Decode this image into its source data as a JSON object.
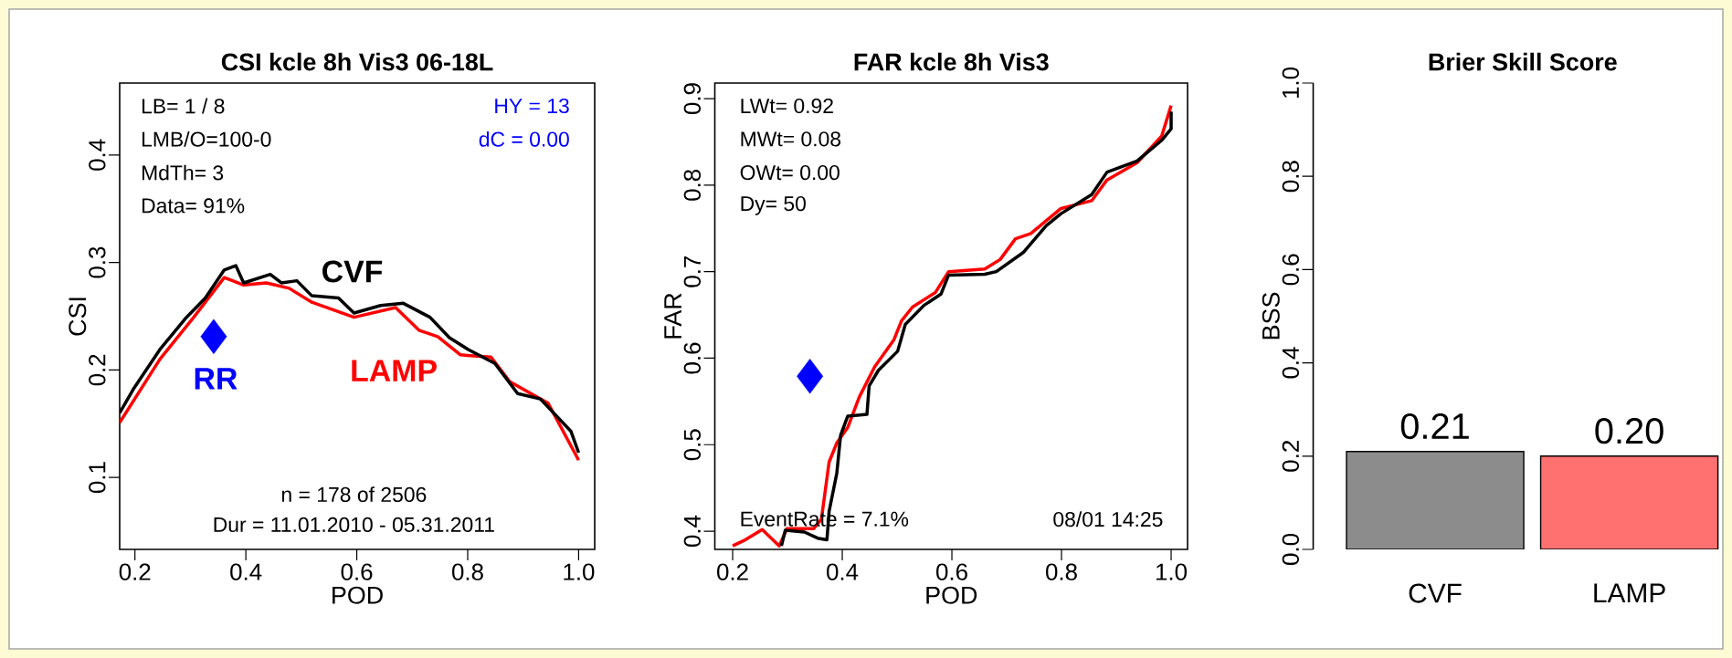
{
  "chart_data": [
    {
      "type": "line",
      "title": "CSI kcle 8h Vis3 06-18L",
      "xlabel": "POD",
      "ylabel": "CSI",
      "xlim": [
        0.1725,
        1.029
      ],
      "ylim": [
        0.033,
        0.467
      ],
      "xticks": [
        0.2,
        0.4,
        0.6,
        0.8,
        {
          "value": 1.0,
          "label": "1.0"
        }
      ],
      "yticks": [
        0.1,
        0.2,
        0.3,
        0.4
      ],
      "line_style": "solid",
      "series": [
        {
          "name": "LAMP",
          "color": "#ff0000",
          "x": [
            0.1725,
            0.245,
            0.306,
            0.361,
            0.396,
            0.437,
            0.478,
            0.519,
            0.595,
            0.67,
            0.712,
            0.746,
            0.787,
            0.842,
            0.876,
            0.945,
            1.0
          ],
          "values": [
            0.151,
            0.21,
            0.249,
            0.286,
            0.279,
            0.281,
            0.276,
            0.263,
            0.249,
            0.258,
            0.237,
            0.231,
            0.214,
            0.212,
            0.189,
            0.169,
            0.116
          ]
        },
        {
          "name": "CVF",
          "color": "#000000",
          "x": [
            0.1725,
            0.197,
            0.245,
            0.293,
            0.327,
            0.361,
            0.382,
            0.396,
            0.444,
            0.464,
            0.492,
            0.519,
            0.567,
            0.595,
            0.643,
            0.684,
            0.732,
            0.767,
            0.801,
            0.849,
            0.89,
            0.931,
            0.986,
            1.0
          ],
          "values": [
            0.16,
            0.182,
            0.219,
            0.249,
            0.267,
            0.293,
            0.297,
            0.281,
            0.289,
            0.281,
            0.283,
            0.269,
            0.267,
            0.253,
            0.26,
            0.262,
            0.249,
            0.23,
            0.219,
            0.206,
            0.178,
            0.173,
            0.143,
            0.123
          ]
        },
        {
          "name": "RR",
          "type": "scatter",
          "marker": "diamond",
          "color": "#0000ff",
          "x": [
            0.342
          ],
          "values": [
            0.231
          ]
        }
      ],
      "annotations": [
        "LB= 1 / 8",
        "LMB/O=100-0",
        "MdTh= 3",
        "Data= 91%",
        "HY = 13",
        "dC = 0.00",
        "n = 178 of 2506",
        "Dur = 11.01.2010 - 05.31.2011"
      ]
    },
    {
      "type": "line",
      "title": "FAR kcle 8h Vis3",
      "xlabel": "POD",
      "ylabel": "FAR",
      "xlim": [
        0.1675,
        1.03
      ],
      "ylim": [
        0.379,
        0.918
      ],
      "xticks": [
        0.2,
        0.4,
        0.6,
        0.8,
        {
          "value": 1.0,
          "label": "1.0"
        }
      ],
      "yticks": [
        0.4,
        0.5,
        0.6,
        0.7,
        0.8,
        0.9
      ],
      "line_style": "solid",
      "series": [
        {
          "color": "#ff0000",
          "x": [
            0.2,
            0.223,
            0.254,
            0.285,
            0.299,
            0.348,
            0.362,
            0.376,
            0.39,
            0.41,
            0.431,
            0.459,
            0.494,
            0.508,
            0.528,
            0.57,
            0.594,
            0.66,
            0.688,
            0.716,
            0.744,
            0.799,
            0.855,
            0.883,
            0.938,
            0.983,
            1.0
          ],
          "values": [
            0.383,
            0.39,
            0.402,
            0.383,
            0.403,
            0.403,
            0.414,
            0.48,
            0.502,
            0.52,
            0.555,
            0.59,
            0.621,
            0.643,
            0.659,
            0.676,
            0.7,
            0.703,
            0.714,
            0.738,
            0.744,
            0.773,
            0.782,
            0.806,
            0.826,
            0.857,
            0.892
          ]
        },
        {
          "color": "#000000",
          "x": [
            0.289,
            0.296,
            0.331,
            0.355,
            0.372,
            0.376,
            0.39,
            0.397,
            0.41,
            0.445,
            0.449,
            0.466,
            0.501,
            0.515,
            0.549,
            0.58,
            0.594,
            0.66,
            0.681,
            0.73,
            0.772,
            0.799,
            0.855,
            0.883,
            0.938,
            0.983,
            1.0,
            1.0
          ],
          "values": [
            0.383,
            0.401,
            0.399,
            0.392,
            0.39,
            0.423,
            0.467,
            0.511,
            0.533,
            0.535,
            0.568,
            0.586,
            0.608,
            0.639,
            0.661,
            0.674,
            0.696,
            0.697,
            0.7,
            0.722,
            0.753,
            0.767,
            0.789,
            0.815,
            0.828,
            0.852,
            0.865,
            0.885
          ]
        },
        {
          "type": "scatter",
          "marker": "diamond",
          "color": "#0000ff",
          "x": [
            0.341
          ],
          "values": [
            0.579
          ]
        }
      ],
      "annotations": [
        "LWt= 0.92",
        "MWt= 0.08",
        "OWt= 0.00",
        "Dy= 50",
        "EventRate = 7.1%",
        "08/01 14:25"
      ]
    },
    {
      "type": "bar",
      "title": "Brier Skill Score",
      "ylabel": "BSS",
      "categories": [
        "CVF",
        "LAMP"
      ],
      "values": [
        0.21,
        0.2
      ],
      "colors": [
        "#8c8c8c",
        "#ff7070"
      ],
      "value_labels": [
        "0.21",
        "0.20"
      ],
      "ylim": [
        0,
        1
      ],
      "yticks": [
        {
          "value": 0,
          "label": "0.0"
        },
        0.2,
        0.4,
        0.6,
        0.8,
        {
          "value": 1.0,
          "label": "1.0"
        }
      ]
    }
  ]
}
